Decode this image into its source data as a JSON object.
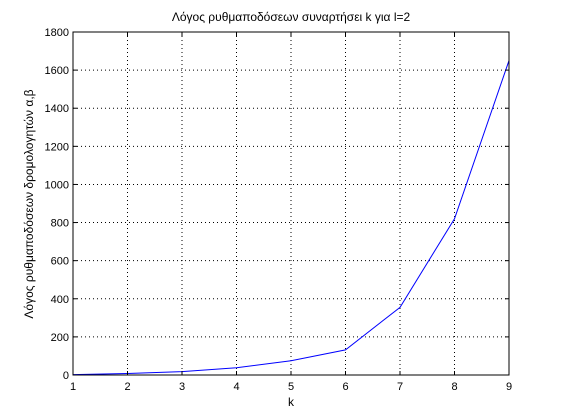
{
  "chart_data": {
    "type": "line",
    "title": "Λόγος ρυθμαποδόσεων συναρτήσει k για l=2",
    "xlabel": "k",
    "ylabel": "Λόγος ρυθμαποδόσεων δρομολογητών α,β",
    "xlim": [
      1,
      9
    ],
    "ylim": [
      0,
      1800
    ],
    "xticks": [
      "1",
      "2",
      "3",
      "4",
      "5",
      "6",
      "7",
      "8",
      "9"
    ],
    "yticks": [
      "0",
      "200",
      "400",
      "600",
      "800",
      "1000",
      "1200",
      "1400",
      "1600",
      "1800"
    ],
    "grid": true,
    "series": [
      {
        "color": "#0000ff",
        "x": [
          1,
          2,
          3,
          4,
          5,
          6,
          7,
          8,
          9
        ],
        "y": [
          2,
          8,
          18,
          38,
          75,
          132,
          355,
          820,
          1650
        ]
      }
    ]
  }
}
